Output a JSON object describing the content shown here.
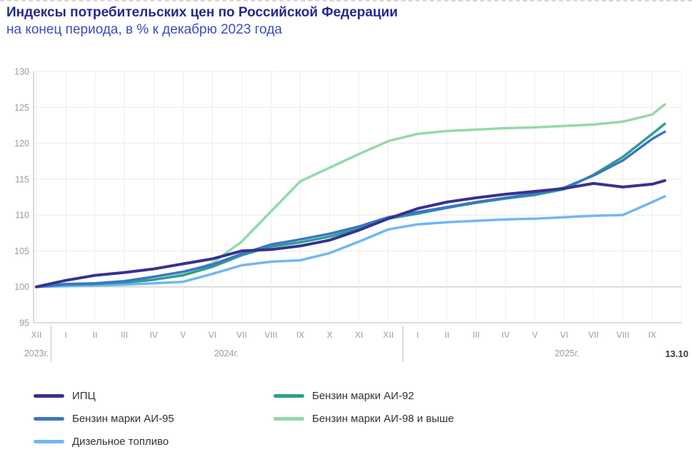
{
  "header": {
    "title": "Индексы потребительских цен по Российской Федерации",
    "subtitle": "на конец периода, в % к декабрю 2023 года"
  },
  "chart_data": {
    "type": "line",
    "title": "Индексы потребительских цен по Российской Федерации",
    "subtitle": "на конец периода, в % к декабрю 2023 года",
    "ylim": [
      95,
      130
    ],
    "y_ticks": [
      95,
      100,
      105,
      110,
      115,
      120,
      125,
      130
    ],
    "grid": true,
    "baseline_value": 100,
    "x_month_labels": [
      "XII",
      "I",
      "II",
      "III",
      "IV",
      "V",
      "VI",
      "VII",
      "VIII",
      "IX",
      "X",
      "XI",
      "XII",
      "I",
      "II",
      "III",
      "IV",
      "V",
      "VI",
      "VII",
      "VIII",
      "IX"
    ],
    "year_groups": [
      {
        "label": "2023г.",
        "first_month_index": 0,
        "last_month_index": 0
      },
      {
        "label": "2024г.",
        "first_month_index": 1,
        "last_month_index": 12
      },
      {
        "label": "2025г.",
        "first_month_index": 13,
        "last_month_index": 21
      }
    ],
    "final_point": {
      "label": "13.10",
      "month_offset_after_last_tick": 0.43
    },
    "series": [
      {
        "id": "ipc",
        "name": "ИПЦ",
        "color": "#37328f",
        "values": [
          100,
          100.9,
          101.6,
          102.0,
          102.5,
          103.2,
          103.9,
          105.0,
          105.2,
          105.7,
          106.5,
          107.9,
          109.5,
          110.9,
          111.8,
          112.4,
          112.9,
          113.3,
          113.7,
          114.4,
          113.9,
          114.3,
          114.8
        ]
      },
      {
        "id": "ai92",
        "name": "Бензин марки АИ-92",
        "color": "#2f9e8d",
        "values": [
          100,
          100.3,
          100.4,
          100.6,
          101.0,
          101.6,
          102.8,
          104.4,
          105.6,
          106.2,
          107.0,
          108.1,
          109.5,
          110.2,
          111.0,
          111.7,
          112.3,
          112.8,
          113.6,
          115.6,
          118.1,
          121.3,
          122.7
        ]
      },
      {
        "id": "ai95",
        "name": "Бензин марки АИ-95",
        "color": "#3b76c6",
        "values": [
          100,
          100.4,
          100.5,
          100.8,
          101.4,
          102.1,
          103.1,
          104.6,
          105.9,
          106.6,
          107.4,
          108.4,
          109.7,
          110.4,
          111.1,
          111.8,
          112.4,
          113.0,
          113.8,
          115.5,
          117.6,
          120.6,
          121.6
        ]
      },
      {
        "id": "ai98",
        "name": "Бензин марки АИ-98 и выше",
        "color": "#93d9ab",
        "values": [
          100,
          100.2,
          100.3,
          100.5,
          101.0,
          101.7,
          103.3,
          106.3,
          110.5,
          114.7,
          116.6,
          118.5,
          120.3,
          121.3,
          121.7,
          121.9,
          122.1,
          122.2,
          122.4,
          122.6,
          123.0,
          124.0,
          125.4
        ]
      },
      {
        "id": "diesel",
        "name": "Дизельное топливо",
        "color": "#72b7f2",
        "values": [
          100,
          100.1,
          100.2,
          100.3,
          100.5,
          100.7,
          101.8,
          103.0,
          103.5,
          103.7,
          104.7,
          106.3,
          108.0,
          108.7,
          109.0,
          109.2,
          109.4,
          109.5,
          109.7,
          109.9,
          110.0,
          111.8,
          112.6
        ]
      }
    ],
    "legend_order": [
      "ipc",
      "ai92",
      "ai95",
      "ai98",
      "diesel"
    ]
  },
  "colors": {
    "axis_text": "#9b9b9b",
    "gridline": "#e9e9e9",
    "gridline_vertical": "#ececec",
    "baseline": "#c9c9c9",
    "axis_line": "#c6c6c6",
    "year_separator": "#cccccc",
    "final_label_text": "#3c3c3c"
  }
}
